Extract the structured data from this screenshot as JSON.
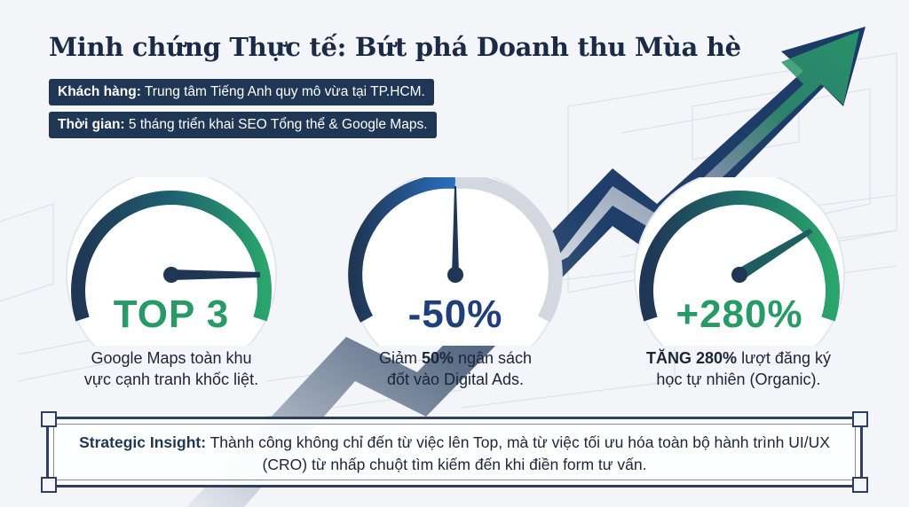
{
  "title": "Minh chứng Thực tế: Bứt phá Doanh thu Mùa hè",
  "client": {
    "label": "Khách hàng:",
    "value": " Trung tâm Tiếng Anh quy mô vừa tại TP.HCM."
  },
  "duration": {
    "label": "Thời gian:",
    "value": " 5 tháng triển khai SEO Tổng thể & Google Maps."
  },
  "metrics": [
    {
      "value": "TOP 3",
      "caption_line1": "Google Maps toàn khu",
      "caption_line2": "vực cạnh tranh khốc liệt."
    },
    {
      "value": "-50%",
      "caption_pre": "Giảm ",
      "caption_bold": "50%",
      "caption_post": " ngân sách",
      "caption_line2": "đốt vào Digital Ads."
    },
    {
      "value": "+280%",
      "caption_bold": "TĂNG 280%",
      "caption_post": " lượt đăng ký",
      "caption_line2": "học tự nhiên (Organic)."
    }
  ],
  "insight": {
    "label": "Strategic Insight:",
    "text": " Thành công không chỉ đến từ việc lên Top, mà từ việc tối ưu hóa toàn bộ hành trình UI/UX (CRO) từ nhấp chuột tìm kiếm đến khi điền form tư vấn."
  },
  "colors": {
    "navy": "#1f3654",
    "green": "#279a66",
    "blue": "#1f3f7a"
  }
}
